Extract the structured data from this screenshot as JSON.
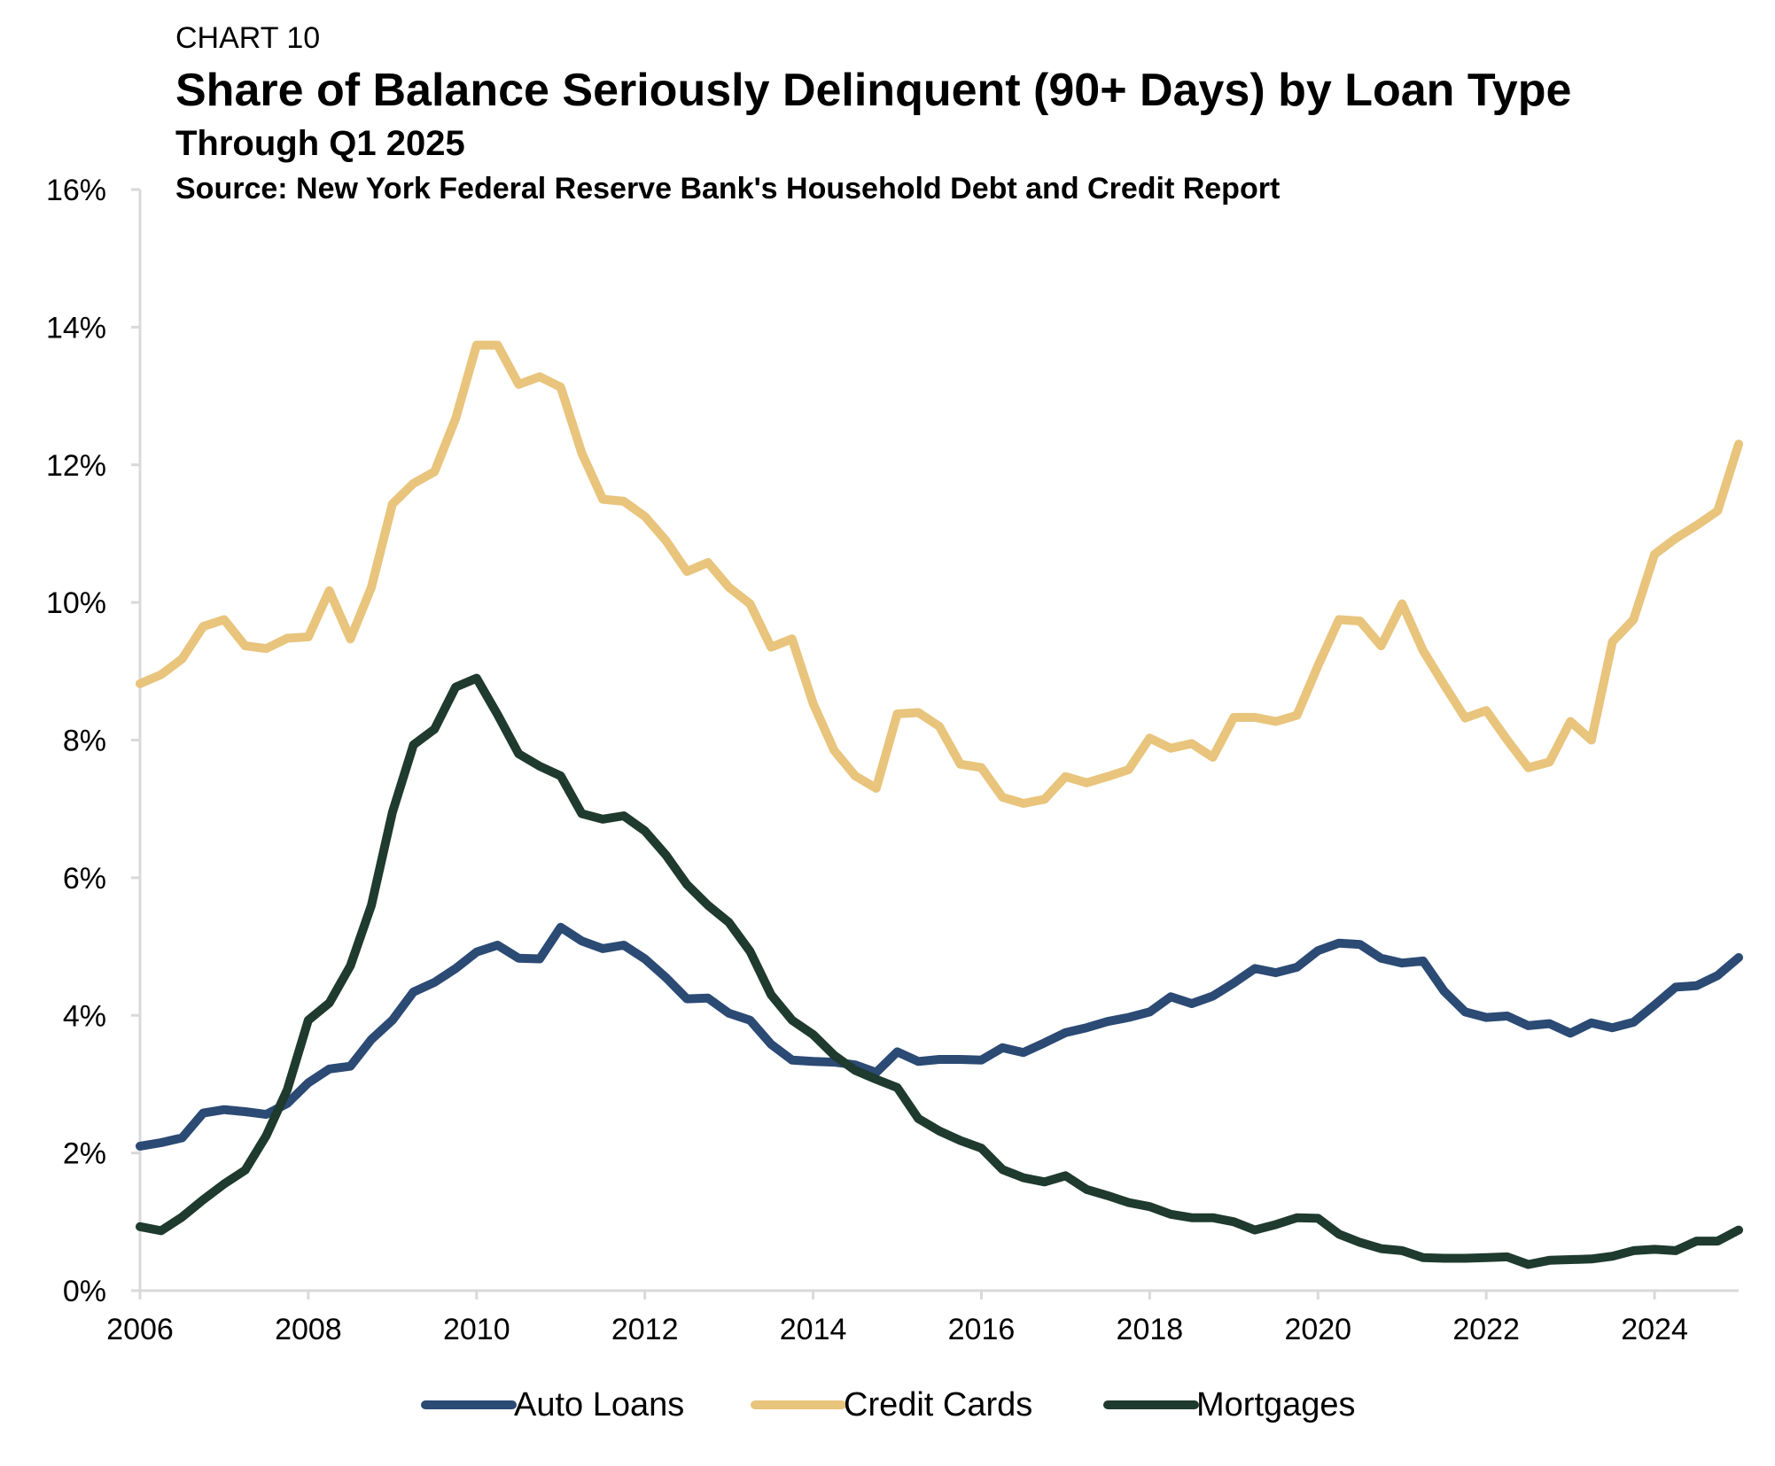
{
  "header": {
    "label": "CHART 10",
    "title": "Share of Balance Seriously Delinquent (90+ Days) by Loan Type",
    "subtitle": "Through Q1 2025",
    "source": "Source: New York Federal Reserve Bank's Household Debt and Credit Report"
  },
  "chart_data": {
    "type": "line",
    "title": "Share of Balance Seriously Delinquent (90+ Days) by Loan Type",
    "subtitle": "Through Q1 2025",
    "xlabel": "",
    "ylabel": "",
    "xlim": [
      2006,
      2025
    ],
    "ylim": [
      0,
      16
    ],
    "x_ticks": [
      2006,
      2008,
      2010,
      2012,
      2014,
      2016,
      2018,
      2020,
      2022,
      2024
    ],
    "y_ticks": [
      0,
      2,
      4,
      6,
      8,
      10,
      12,
      14,
      16
    ],
    "y_tick_labels": [
      "0%",
      "2%",
      "4%",
      "6%",
      "8%",
      "10%",
      "12%",
      "14%",
      "16%"
    ],
    "grid": false,
    "legend_position": "bottom",
    "series": [
      {
        "name": "Auto Loans",
        "color": "#2b4a74",
        "values": [
          [
            2006.0,
            2.1
          ],
          [
            2006.25,
            2.15
          ],
          [
            2006.5,
            2.22
          ],
          [
            2006.75,
            2.58
          ],
          [
            2007.0,
            2.63
          ],
          [
            2007.25,
            2.6
          ],
          [
            2007.5,
            2.56
          ],
          [
            2007.75,
            2.72
          ],
          [
            2008.0,
            3.02
          ],
          [
            2008.25,
            3.22
          ],
          [
            2008.5,
            3.26
          ],
          [
            2008.75,
            3.65
          ],
          [
            2009.0,
            3.93
          ],
          [
            2009.25,
            4.34
          ],
          [
            2009.5,
            4.48
          ],
          [
            2009.75,
            4.68
          ],
          [
            2010.0,
            4.92
          ],
          [
            2010.25,
            5.02
          ],
          [
            2010.5,
            4.83
          ],
          [
            2010.75,
            4.82
          ],
          [
            2011.0,
            5.28
          ],
          [
            2011.25,
            5.08
          ],
          [
            2011.5,
            4.97
          ],
          [
            2011.75,
            5.02
          ],
          [
            2012.0,
            4.82
          ],
          [
            2012.25,
            4.55
          ],
          [
            2012.5,
            4.24
          ],
          [
            2012.75,
            4.25
          ],
          [
            2013.0,
            4.03
          ],
          [
            2013.25,
            3.93
          ],
          [
            2013.5,
            3.58
          ],
          [
            2013.75,
            3.35
          ],
          [
            2014.0,
            3.33
          ],
          [
            2014.25,
            3.32
          ],
          [
            2014.5,
            3.28
          ],
          [
            2014.75,
            3.17
          ],
          [
            2015.0,
            3.47
          ],
          [
            2015.25,
            3.33
          ],
          [
            2015.5,
            3.36
          ],
          [
            2015.75,
            3.36
          ],
          [
            2016.0,
            3.35
          ],
          [
            2016.25,
            3.53
          ],
          [
            2016.5,
            3.46
          ],
          [
            2016.75,
            3.6
          ],
          [
            2017.0,
            3.75
          ],
          [
            2017.25,
            3.82
          ],
          [
            2017.5,
            3.91
          ],
          [
            2017.75,
            3.97
          ],
          [
            2018.0,
            4.05
          ],
          [
            2018.25,
            4.27
          ],
          [
            2018.5,
            4.17
          ],
          [
            2018.75,
            4.28
          ],
          [
            2019.0,
            4.47
          ],
          [
            2019.25,
            4.68
          ],
          [
            2019.5,
            4.62
          ],
          [
            2019.75,
            4.7
          ],
          [
            2020.0,
            4.94
          ],
          [
            2020.25,
            5.05
          ],
          [
            2020.5,
            5.03
          ],
          [
            2020.75,
            4.83
          ],
          [
            2021.0,
            4.76
          ],
          [
            2021.25,
            4.79
          ],
          [
            2021.5,
            4.35
          ],
          [
            2021.75,
            4.05
          ],
          [
            2022.0,
            3.97
          ],
          [
            2022.25,
            3.99
          ],
          [
            2022.5,
            3.85
          ],
          [
            2022.75,
            3.88
          ],
          [
            2023.0,
            3.74
          ],
          [
            2023.25,
            3.89
          ],
          [
            2023.5,
            3.82
          ],
          [
            2023.75,
            3.9
          ],
          [
            2024.0,
            4.15
          ],
          [
            2024.25,
            4.41
          ],
          [
            2024.5,
            4.43
          ],
          [
            2024.75,
            4.58
          ],
          [
            2025.0,
            4.84
          ]
        ]
      },
      {
        "name": "Credit Cards",
        "color": "#e8c47c",
        "values": [
          [
            2006.0,
            8.82
          ],
          [
            2006.25,
            8.95
          ],
          [
            2006.5,
            9.18
          ],
          [
            2006.75,
            9.65
          ],
          [
            2007.0,
            9.75
          ],
          [
            2007.25,
            9.37
          ],
          [
            2007.5,
            9.33
          ],
          [
            2007.75,
            9.48
          ],
          [
            2008.0,
            9.5
          ],
          [
            2008.25,
            10.17
          ],
          [
            2008.5,
            9.47
          ],
          [
            2008.75,
            10.22
          ],
          [
            2009.0,
            11.43
          ],
          [
            2009.25,
            11.73
          ],
          [
            2009.5,
            11.9
          ],
          [
            2009.75,
            12.67
          ],
          [
            2010.0,
            13.74
          ],
          [
            2010.25,
            13.74
          ],
          [
            2010.5,
            13.17
          ],
          [
            2010.75,
            13.28
          ],
          [
            2011.0,
            13.13
          ],
          [
            2011.25,
            12.17
          ],
          [
            2011.5,
            11.5
          ],
          [
            2011.75,
            11.47
          ],
          [
            2012.0,
            11.25
          ],
          [
            2012.25,
            10.9
          ],
          [
            2012.5,
            10.45
          ],
          [
            2012.75,
            10.58
          ],
          [
            2013.0,
            10.22
          ],
          [
            2013.25,
            9.98
          ],
          [
            2013.5,
            9.35
          ],
          [
            2013.75,
            9.47
          ],
          [
            2014.0,
            8.53
          ],
          [
            2014.25,
            7.85
          ],
          [
            2014.5,
            7.48
          ],
          [
            2014.75,
            7.3
          ],
          [
            2015.0,
            8.38
          ],
          [
            2015.25,
            8.4
          ],
          [
            2015.5,
            8.2
          ],
          [
            2015.75,
            7.65
          ],
          [
            2016.0,
            7.6
          ],
          [
            2016.25,
            7.17
          ],
          [
            2016.5,
            7.08
          ],
          [
            2016.75,
            7.14
          ],
          [
            2017.0,
            7.47
          ],
          [
            2017.25,
            7.38
          ],
          [
            2017.5,
            7.47
          ],
          [
            2017.75,
            7.57
          ],
          [
            2018.0,
            8.03
          ],
          [
            2018.25,
            7.88
          ],
          [
            2018.5,
            7.95
          ],
          [
            2018.75,
            7.75
          ],
          [
            2019.0,
            8.33
          ],
          [
            2019.25,
            8.33
          ],
          [
            2019.5,
            8.27
          ],
          [
            2019.75,
            8.36
          ],
          [
            2020.0,
            9.08
          ],
          [
            2020.25,
            9.75
          ],
          [
            2020.5,
            9.73
          ],
          [
            2020.75,
            9.37
          ],
          [
            2021.0,
            9.98
          ],
          [
            2021.25,
            9.3
          ],
          [
            2021.5,
            8.8
          ],
          [
            2021.75,
            8.32
          ],
          [
            2022.0,
            8.43
          ],
          [
            2022.25,
            8.0
          ],
          [
            2022.5,
            7.6
          ],
          [
            2022.75,
            7.68
          ],
          [
            2023.0,
            8.27
          ],
          [
            2023.25,
            8.0
          ],
          [
            2023.5,
            9.43
          ],
          [
            2023.75,
            9.75
          ],
          [
            2024.0,
            10.7
          ],
          [
            2024.25,
            10.93
          ],
          [
            2024.5,
            11.12
          ],
          [
            2024.75,
            11.33
          ],
          [
            2025.0,
            12.3
          ]
        ]
      },
      {
        "name": "Mortgages",
        "color": "#1f3a2e",
        "values": [
          [
            2006.0,
            0.93
          ],
          [
            2006.25,
            0.87
          ],
          [
            2006.5,
            1.07
          ],
          [
            2006.75,
            1.32
          ],
          [
            2007.0,
            1.55
          ],
          [
            2007.25,
            1.75
          ],
          [
            2007.5,
            2.25
          ],
          [
            2007.75,
            2.92
          ],
          [
            2008.0,
            3.93
          ],
          [
            2008.25,
            4.18
          ],
          [
            2008.5,
            4.72
          ],
          [
            2008.75,
            5.6
          ],
          [
            2009.0,
            6.95
          ],
          [
            2009.25,
            7.93
          ],
          [
            2009.5,
            8.16
          ],
          [
            2009.75,
            8.77
          ],
          [
            2010.0,
            8.9
          ],
          [
            2010.25,
            8.37
          ],
          [
            2010.5,
            7.8
          ],
          [
            2010.75,
            7.62
          ],
          [
            2011.0,
            7.48
          ],
          [
            2011.25,
            6.93
          ],
          [
            2011.5,
            6.85
          ],
          [
            2011.75,
            6.9
          ],
          [
            2012.0,
            6.68
          ],
          [
            2012.25,
            6.33
          ],
          [
            2012.5,
            5.9
          ],
          [
            2012.75,
            5.6
          ],
          [
            2013.0,
            5.35
          ],
          [
            2013.25,
            4.93
          ],
          [
            2013.5,
            4.3
          ],
          [
            2013.75,
            3.93
          ],
          [
            2014.0,
            3.72
          ],
          [
            2014.25,
            3.42
          ],
          [
            2014.5,
            3.2
          ],
          [
            2014.75,
            3.07
          ],
          [
            2015.0,
            2.95
          ],
          [
            2015.25,
            2.5
          ],
          [
            2015.5,
            2.32
          ],
          [
            2015.75,
            2.18
          ],
          [
            2016.0,
            2.07
          ],
          [
            2016.25,
            1.76
          ],
          [
            2016.5,
            1.64
          ],
          [
            2016.75,
            1.58
          ],
          [
            2017.0,
            1.67
          ],
          [
            2017.25,
            1.47
          ],
          [
            2017.5,
            1.38
          ],
          [
            2017.75,
            1.28
          ],
          [
            2018.0,
            1.22
          ],
          [
            2018.25,
            1.11
          ],
          [
            2018.5,
            1.06
          ],
          [
            2018.75,
            1.06
          ],
          [
            2019.0,
            1.0
          ],
          [
            2019.25,
            0.88
          ],
          [
            2019.5,
            0.96
          ],
          [
            2019.75,
            1.06
          ],
          [
            2020.0,
            1.05
          ],
          [
            2020.25,
            0.82
          ],
          [
            2020.5,
            0.7
          ],
          [
            2020.75,
            0.61
          ],
          [
            2021.0,
            0.58
          ],
          [
            2021.25,
            0.48
          ],
          [
            2021.5,
            0.47
          ],
          [
            2021.75,
            0.47
          ],
          [
            2022.0,
            0.48
          ],
          [
            2022.25,
            0.49
          ],
          [
            2022.5,
            0.38
          ],
          [
            2022.75,
            0.44
          ],
          [
            2023.0,
            0.45
          ],
          [
            2023.25,
            0.46
          ],
          [
            2023.5,
            0.5
          ],
          [
            2023.75,
            0.58
          ],
          [
            2024.0,
            0.6
          ],
          [
            2024.25,
            0.58
          ],
          [
            2024.5,
            0.72
          ],
          [
            2024.75,
            0.72
          ],
          [
            2025.0,
            0.88
          ]
        ]
      }
    ]
  }
}
